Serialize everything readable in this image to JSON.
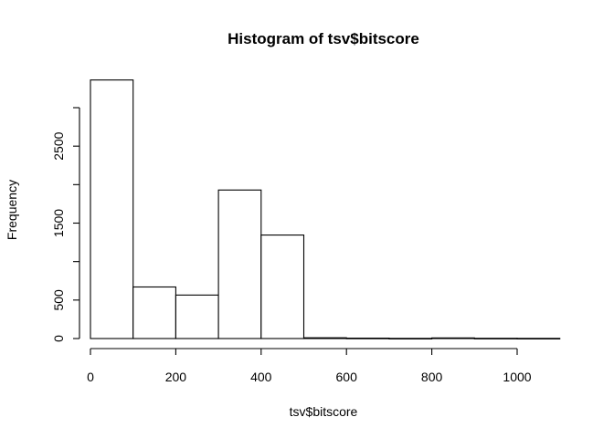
{
  "chart_data": {
    "type": "bar",
    "title": "Histogram of tsv$bitscore",
    "xlabel": "tsv$bitscore",
    "ylabel": "Frequency",
    "bins": [
      {
        "start": 0,
        "end": 100,
        "count": 3360
      },
      {
        "start": 100,
        "end": 200,
        "count": 670
      },
      {
        "start": 200,
        "end": 300,
        "count": 565
      },
      {
        "start": 300,
        "end": 400,
        "count": 1930
      },
      {
        "start": 400,
        "end": 500,
        "count": 1345
      },
      {
        "start": 500,
        "end": 600,
        "count": 10
      },
      {
        "start": 600,
        "end": 700,
        "count": 5
      },
      {
        "start": 700,
        "end": 800,
        "count": 2
      },
      {
        "start": 800,
        "end": 900,
        "count": 8
      },
      {
        "start": 900,
        "end": 1000,
        "count": 3
      },
      {
        "start": 1000,
        "end": 1100,
        "count": 2
      }
    ],
    "xlim": [
      0,
      1100
    ],
    "ylim": [
      0,
      3360
    ],
    "x_ticks": [
      0,
      200,
      400,
      600,
      800,
      1000
    ],
    "y_ticks": [
      0,
      500,
      1000,
      1500,
      2000,
      2500,
      3000
    ],
    "y_tick_labels": [
      "0",
      "500",
      "",
      "1500",
      "",
      "2500",
      ""
    ],
    "grid": false,
    "legend": "none",
    "colors": {
      "bar_fill": "#ffffff",
      "bar_stroke": "#000000"
    }
  }
}
